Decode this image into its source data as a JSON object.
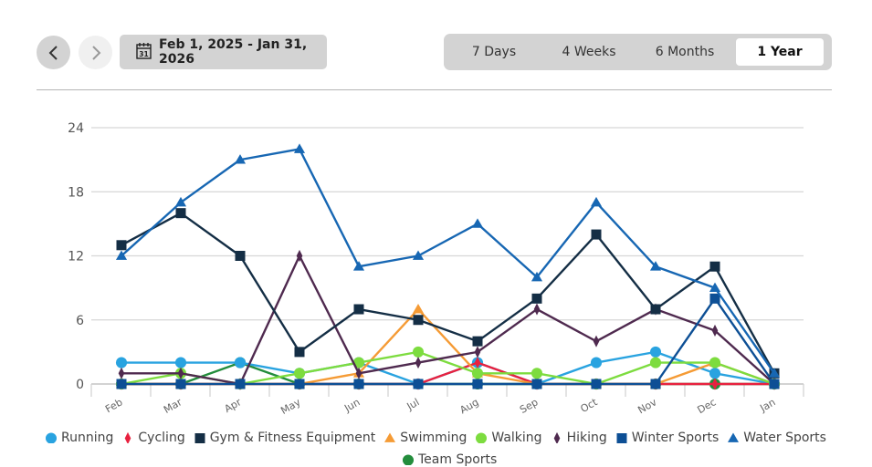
{
  "toolbar": {
    "prev_icon": "chevron-left-icon",
    "next_icon": "chevron-right-icon",
    "calendar_icon": "calendar-icon",
    "calendar_day": "31",
    "date_range": "Feb 1, 2025 - Jan 31, 2026",
    "ranges": [
      {
        "label": "7 Days",
        "active": false
      },
      {
        "label": "4 Weeks",
        "active": false
      },
      {
        "label": "6 Months",
        "active": false
      },
      {
        "label": "1 Year",
        "active": true
      }
    ]
  },
  "chart_data": {
    "type": "line",
    "title": "",
    "xlabel": "",
    "ylabel": "",
    "ylim": [
      0,
      24
    ],
    "yticks": [
      0,
      6,
      12,
      18,
      24
    ],
    "grid": true,
    "legend_position": "bottom",
    "categories": [
      "Feb",
      "Mar",
      "Apr",
      "May",
      "Jun",
      "Jul",
      "Aug",
      "Sep",
      "Oct",
      "Nov",
      "Dec",
      "Jan"
    ],
    "series": [
      {
        "name": "Running",
        "color": "#29a3e0",
        "marker": "circle",
        "values": [
          2,
          2,
          2,
          1,
          2,
          0,
          2,
          0,
          2,
          3,
          1,
          0
        ]
      },
      {
        "name": "Cycling",
        "color": "#e8213f",
        "marker": "diamond",
        "values": [
          0,
          0,
          0,
          0,
          0,
          0,
          2,
          0,
          0,
          0,
          0,
          0
        ]
      },
      {
        "name": "Gym & Fitness Equipment",
        "color": "#142e45",
        "marker": "square",
        "values": [
          13,
          16,
          12,
          3,
          7,
          6,
          4,
          8,
          14,
          7,
          11,
          1
        ]
      },
      {
        "name": "Swimming",
        "color": "#f59b35",
        "marker": "triangle",
        "values": [
          0,
          0,
          0,
          0,
          1,
          7,
          1,
          0,
          0,
          0,
          2,
          0
        ]
      },
      {
        "name": "Walking",
        "color": "#7ddc3f",
        "marker": "circle",
        "values": [
          0,
          1,
          0,
          1,
          2,
          3,
          1,
          1,
          0,
          2,
          2,
          0
        ]
      },
      {
        "name": "Hiking",
        "color": "#4f2a4f",
        "marker": "diamond",
        "values": [
          1,
          1,
          0,
          12,
          1,
          2,
          3,
          7,
          4,
          7,
          5,
          0
        ]
      },
      {
        "name": "Winter Sports",
        "color": "#0d4f95",
        "marker": "square",
        "values": [
          0,
          0,
          0,
          0,
          0,
          0,
          0,
          0,
          0,
          0,
          8,
          0
        ]
      },
      {
        "name": "Water Sports",
        "color": "#1767b3",
        "marker": "triangle",
        "values": [
          12,
          17,
          21,
          22,
          11,
          12,
          15,
          10,
          17,
          11,
          9,
          1
        ]
      },
      {
        "name": "Team Sports",
        "color": "#238d3c",
        "marker": "circle",
        "values": [
          0,
          0,
          2,
          0,
          0,
          0,
          0,
          0,
          0,
          0,
          0,
          0
        ]
      }
    ]
  }
}
